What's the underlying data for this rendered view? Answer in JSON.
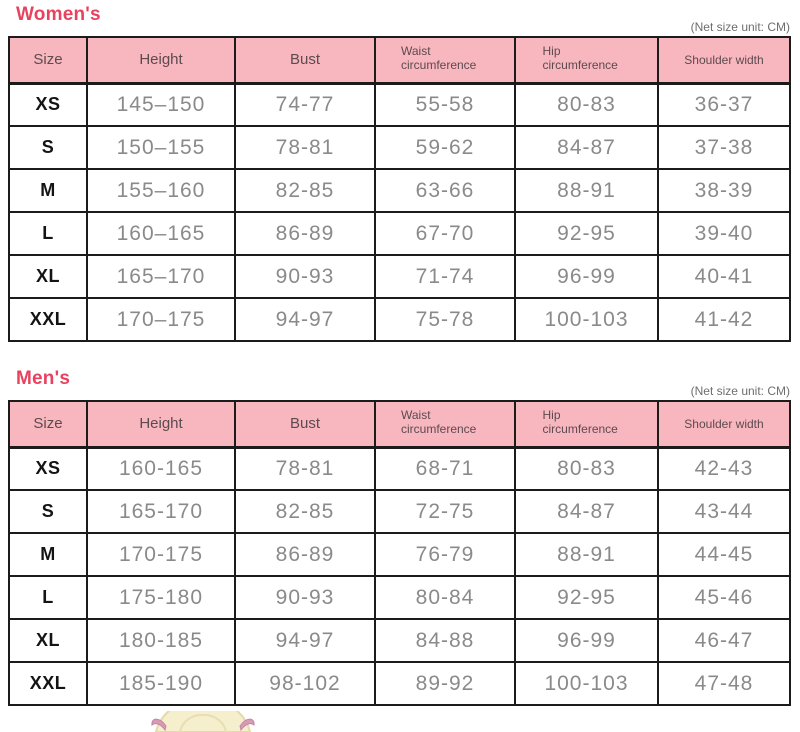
{
  "note": "(Net size unit: CM)",
  "columns": [
    "Size",
    "Height",
    "Bust",
    "Waist circumference",
    "Hip circumference",
    "Shoulder width"
  ],
  "sections": [
    {
      "title": "Women's",
      "rows": [
        [
          "XS",
          "145–150",
          "74-77",
          "55-58",
          "80-83",
          "36-37"
        ],
        [
          "S",
          "150–155",
          "78-81",
          "59-62",
          "84-87",
          "37-38"
        ],
        [
          "M",
          "155–160",
          "82-85",
          "63-66",
          "88-91",
          "38-39"
        ],
        [
          "L",
          "160–165",
          "86-89",
          "67-70",
          "92-95",
          "39-40"
        ],
        [
          "XL",
          "165–170",
          "90-93",
          "71-74",
          "96-99",
          "40-41"
        ],
        [
          "XXL",
          "170–175",
          "94-97",
          "75-78",
          "100-103",
          "41-42"
        ]
      ]
    },
    {
      "title": "Men's",
      "rows": [
        [
          "XS",
          "160-165",
          "78-81",
          "68-71",
          "80-83",
          "42-43"
        ],
        [
          "S",
          "165-170",
          "82-85",
          "72-75",
          "84-87",
          "43-44"
        ],
        [
          "M",
          "170-175",
          "86-89",
          "76-79",
          "88-91",
          "44-45"
        ],
        [
          "L",
          "175-180",
          "90-93",
          "80-84",
          "92-95",
          "45-46"
        ],
        [
          "XL",
          "180-185",
          "94-97",
          "84-88",
          "96-99",
          "46-47"
        ],
        [
          "XXL",
          "185-190",
          "98-102",
          "89-92",
          "100-103",
          "47-48"
        ]
      ]
    }
  ],
  "colors": {
    "accent_title": "#e8425f",
    "header_background": "#f8b7bf",
    "table_border": "#1b1b1b",
    "value_text": "#8a8a8a",
    "header_text": "#5c4a4f",
    "note_text": "#6e6e6e"
  }
}
